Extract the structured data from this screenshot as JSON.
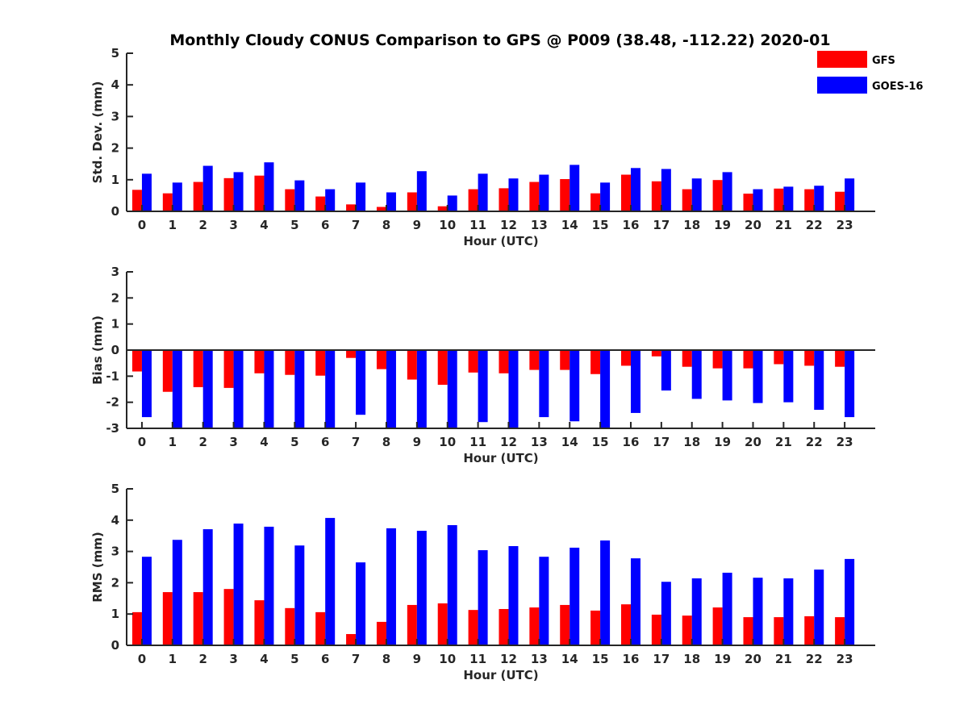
{
  "title": "Monthly Cloudy CONUS Comparison to GPS @ P009 (38.48, -112.22) 2020-01",
  "colors": {
    "GFS": "#ff0000",
    "GOES-16": "#0000ff",
    "axis": "#262626"
  },
  "chart_data": [
    {
      "type": "bar",
      "xlabel": "Hour (UTC)",
      "ylabel": "Std. Dev. (mm)",
      "ylim": [
        0,
        5
      ],
      "yticks": [
        0,
        1,
        2,
        3,
        4,
        5
      ],
      "categories": [
        "0",
        "1",
        "2",
        "3",
        "4",
        "5",
        "6",
        "7",
        "8",
        "9",
        "10",
        "11",
        "12",
        "13",
        "14",
        "15",
        "16",
        "17",
        "18",
        "19",
        "20",
        "21",
        "22",
        "23"
      ],
      "legend": {
        "placement": "top-right",
        "entries": [
          "GFS",
          "GOES-16"
        ]
      },
      "series": [
        {
          "name": "GFS",
          "values": [
            0.68,
            0.57,
            0.93,
            1.05,
            1.13,
            0.7,
            0.47,
            0.22,
            0.14,
            0.6,
            0.16,
            0.7,
            0.73,
            0.93,
            1.02,
            0.57,
            1.16,
            0.95,
            0.7,
            0.99,
            0.56,
            0.72,
            0.7,
            0.62
          ]
        },
        {
          "name": "GOES-16",
          "values": [
            1.19,
            0.91,
            1.44,
            1.24,
            1.55,
            0.98,
            0.7,
            0.91,
            0.6,
            1.27,
            0.5,
            1.19,
            1.04,
            1.16,
            1.47,
            0.91,
            1.37,
            1.34,
            1.04,
            1.24,
            0.7,
            0.78,
            0.81,
            1.04
          ]
        }
      ]
    },
    {
      "type": "bar",
      "xlabel": "Hour (UTC)",
      "ylabel": "Bias (mm)",
      "ylim": [
        -3,
        3
      ],
      "yticks": [
        -3,
        -2,
        -1,
        0,
        1,
        2,
        3
      ],
      "categories": [
        "0",
        "1",
        "2",
        "3",
        "4",
        "5",
        "6",
        "7",
        "8",
        "9",
        "10",
        "11",
        "12",
        "13",
        "14",
        "15",
        "16",
        "17",
        "18",
        "19",
        "20",
        "21",
        "22",
        "23"
      ],
      "series": [
        {
          "name": "GFS",
          "values": [
            -0.82,
            -1.6,
            -1.42,
            -1.45,
            -0.89,
            -0.95,
            -0.98,
            -0.3,
            -0.73,
            -1.13,
            -1.33,
            -0.86,
            -0.89,
            -0.76,
            -0.76,
            -0.92,
            -0.6,
            -0.24,
            -0.64,
            -0.7,
            -0.7,
            -0.54,
            -0.6,
            -0.64
          ]
        },
        {
          "name": "GOES-16",
          "values": [
            -2.57,
            -3.0,
            -3.0,
            -3.0,
            -3.0,
            -3.0,
            -3.0,
            -2.48,
            -3.0,
            -3.0,
            -3.0,
            -2.76,
            -3.0,
            -2.57,
            -2.73,
            -3.0,
            -2.41,
            -1.55,
            -1.87,
            -1.93,
            -2.03,
            -2.0,
            -2.29,
            -2.57
          ]
        }
      ]
    },
    {
      "type": "bar",
      "xlabel": "Hour (UTC)",
      "ylabel": "RMS (mm)",
      "ylim": [
        0,
        5
      ],
      "yticks": [
        0,
        1,
        2,
        3,
        4,
        5
      ],
      "categories": [
        "0",
        "1",
        "2",
        "3",
        "4",
        "5",
        "6",
        "7",
        "8",
        "9",
        "10",
        "11",
        "12",
        "13",
        "14",
        "15",
        "16",
        "17",
        "18",
        "19",
        "20",
        "21",
        "22",
        "23"
      ],
      "series": [
        {
          "name": "GFS",
          "values": [
            1.06,
            1.7,
            1.7,
            1.8,
            1.44,
            1.19,
            1.06,
            0.36,
            0.75,
            1.29,
            1.34,
            1.13,
            1.16,
            1.21,
            1.29,
            1.11,
            1.31,
            0.98,
            0.95,
            1.21,
            0.9,
            0.9,
            0.93,
            0.9
          ]
        },
        {
          "name": "GOES-16",
          "values": [
            2.83,
            3.37,
            3.71,
            3.89,
            3.79,
            3.19,
            4.07,
            2.65,
            3.74,
            3.66,
            3.84,
            3.04,
            3.17,
            2.83,
            3.12,
            3.35,
            2.78,
            2.03,
            2.14,
            2.32,
            2.16,
            2.14,
            2.42,
            2.76
          ]
        }
      ]
    }
  ]
}
